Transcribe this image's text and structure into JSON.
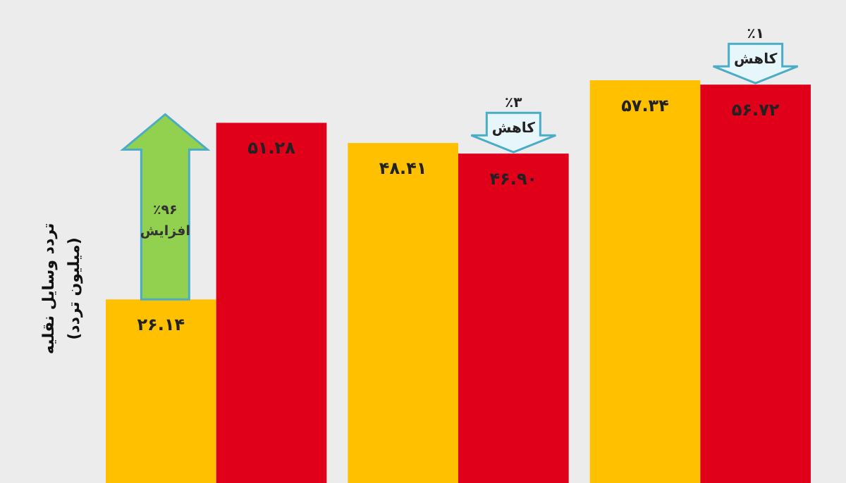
{
  "chart_data": {
    "type": "bar",
    "ylabel": "تردد وسایل نقلیه (میلیون تردد)",
    "categories": [
      null,
      null,
      null
    ],
    "series": [
      {
        "color": "#ffc000",
        "values": [
          26.14,
          48.41,
          57.34
        ],
        "value_labels": [
          "۲۶.۱۴",
          "۴۸.۴۱",
          "۵۷.۳۴"
        ]
      },
      {
        "color": "#e0001a",
        "values": [
          51.28,
          46.9,
          56.72
        ],
        "value_labels": [
          "۵۱.۲۸",
          "۴۶.۹۰",
          "۵۶.۷۲"
        ]
      }
    ],
    "annotations": [
      "٪۹۶ افزایش",
      "٪۳ کاهش",
      "٪۱ کاهش"
    ]
  }
}
